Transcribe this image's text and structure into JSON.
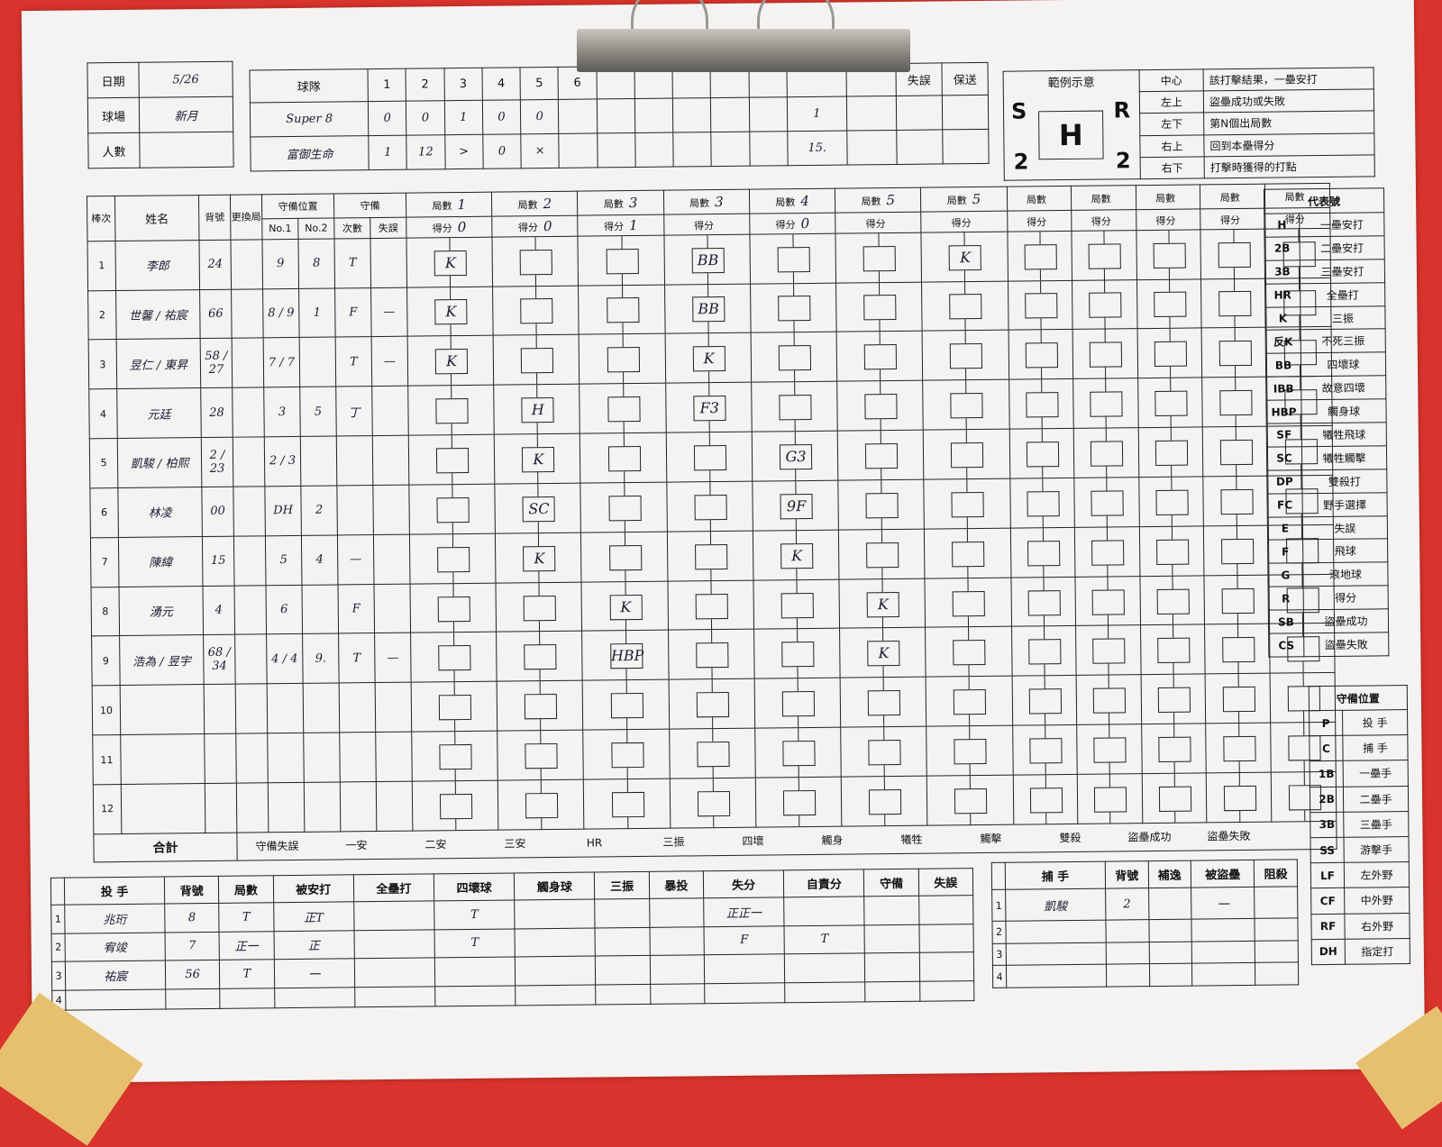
{
  "header": {
    "date_label": "日期",
    "date_value": "5/26",
    "field_label": "球場",
    "field_value": "新月",
    "attendance_label": "人數",
    "attendance_value": ""
  },
  "linescore": {
    "team_label": "球隊",
    "innings": [
      "1",
      "2",
      "3",
      "4",
      "5",
      "6"
    ],
    "extra_labels": [
      "失誤",
      "保送"
    ],
    "teams": [
      {
        "name": "Super 8",
        "scores": [
          "0",
          "0",
          "1",
          "0",
          "0",
          ""
        ],
        "total": "1"
      },
      {
        "name": "富御生命",
        "scores": [
          "1",
          "12",
          ">",
          "0",
          "×",
          ""
        ],
        "total": "15."
      }
    ]
  },
  "example": {
    "title": "範例示意",
    "corners": {
      "top_left": "S",
      "top_right": "R",
      "bottom_left": "2",
      "bottom_right": "2",
      "center": "H"
    },
    "rows": [
      {
        "pos": "中心",
        "desc": "該打擊結果，一壘安打"
      },
      {
        "pos": "左上",
        "desc": "盜壘成功或失敗"
      },
      {
        "pos": "左下",
        "desc": "第N個出局數"
      },
      {
        "pos": "右上",
        "desc": "回到本壘得分"
      },
      {
        "pos": "右下",
        "desc": "打擊時獲得的打點"
      }
    ]
  },
  "batting": {
    "headers": {
      "order": "棒次",
      "name": "姓名",
      "number": "背號",
      "sub": "更換局",
      "pos_group": "守備位置",
      "pos1": "No.1",
      "pos2": "No.2",
      "def_group": "守備",
      "def_times": "次數",
      "def_err": "失誤",
      "inning": "局數",
      "score": "得分"
    },
    "inning_marks": [
      "1",
      "2",
      "3",
      "3",
      "4",
      "5",
      "5",
      "",
      "",
      "",
      "",
      ""
    ],
    "score_marks": [
      "0",
      "0",
      "1",
      "",
      "0",
      "",
      "",
      "",
      "",
      "",
      "",
      ""
    ],
    "rows": [
      {
        "order": "1",
        "name": "李郎",
        "number": "24",
        "pos1": "9",
        "pos2": "8",
        "def": "T",
        "err": ""
      },
      {
        "order": "2",
        "name": "世馨 / 祐宸",
        "number": "66",
        "pos1": "8 / 9",
        "pos2": "1",
        "def": "F",
        "err": "—"
      },
      {
        "order": "3",
        "name": "昱仁 / 東昇",
        "number": "58 / 27",
        "pos1": "7 / 7",
        "pos2": "",
        "def": "T",
        "err": "—"
      },
      {
        "order": "4",
        "name": "元廷",
        "number": "28",
        "pos1": "3",
        "pos2": "5",
        "def": "丁",
        "err": ""
      },
      {
        "order": "5",
        "name": "凱駿 / 柏熙",
        "number": "2 / 23",
        "pos1": "2 / 3",
        "pos2": "",
        "def": "",
        "err": ""
      },
      {
        "order": "6",
        "name": "林凌",
        "number": "00",
        "pos1": "DH",
        "pos2": "2",
        "def": "",
        "err": ""
      },
      {
        "order": "7",
        "name": "陳緯",
        "number": "15",
        "pos1": "5",
        "pos2": "4",
        "def": "—",
        "err": ""
      },
      {
        "order": "8",
        "name": "湧元",
        "number": "4",
        "pos1": "6",
        "pos2": "",
        "def": "F",
        "err": ""
      },
      {
        "order": "9",
        "name": "浩為 / 昱宇",
        "number": "68 / 34",
        "pos1": "4 / 4",
        "pos2": "9.",
        "def": "T",
        "err": "—"
      },
      {
        "order": "10",
        "name": "",
        "number": "",
        "pos1": "",
        "pos2": "",
        "def": "",
        "err": ""
      },
      {
        "order": "11",
        "name": "",
        "number": "",
        "pos1": "",
        "pos2": "",
        "def": "",
        "err": ""
      },
      {
        "order": "12",
        "name": "",
        "number": "",
        "pos1": "",
        "pos2": "",
        "def": "",
        "err": ""
      }
    ],
    "marks": [
      {
        "row": 0,
        "col": 0,
        "text": "K"
      },
      {
        "row": 0,
        "col": 3,
        "text": "BB"
      },
      {
        "row": 0,
        "col": 6,
        "text": "K"
      },
      {
        "row": 1,
        "col": 0,
        "text": "K"
      },
      {
        "row": 1,
        "col": 3,
        "text": "BB"
      },
      {
        "row": 2,
        "col": 0,
        "text": "K"
      },
      {
        "row": 2,
        "col": 3,
        "text": "K"
      },
      {
        "row": 3,
        "col": 1,
        "text": "H"
      },
      {
        "row": 3,
        "col": 3,
        "text": "F3"
      },
      {
        "row": 4,
        "col": 1,
        "text": "K"
      },
      {
        "row": 4,
        "col": 4,
        "text": "G3"
      },
      {
        "row": 5,
        "col": 1,
        "text": "SC"
      },
      {
        "row": 5,
        "col": 4,
        "text": "9F"
      },
      {
        "row": 6,
        "col": 1,
        "text": "K"
      },
      {
        "row": 6,
        "col": 4,
        "text": "K"
      },
      {
        "row": 7,
        "col": 2,
        "text": "K"
      },
      {
        "row": 7,
        "col": 5,
        "text": "K"
      },
      {
        "row": 8,
        "col": 2,
        "text": "HBP"
      },
      {
        "row": 8,
        "col": 5,
        "text": "K"
      }
    ],
    "totals_label": "合計",
    "totals_items": [
      "守備失誤",
      "一安",
      "二安",
      "三安",
      "HR",
      "三振",
      "四壞",
      "觸身",
      "犧牲",
      "觸擊",
      "雙殺",
      "盜壘成功",
      "盜壘失敗"
    ]
  },
  "codes": {
    "title": "代表號",
    "rows": [
      {
        "code": "H",
        "desc": "一壘安打"
      },
      {
        "code": "2B",
        "desc": "二壘安打"
      },
      {
        "code": "3B",
        "desc": "三壘安打"
      },
      {
        "code": "HR",
        "desc": "全壘打"
      },
      {
        "code": "K",
        "desc": "三振"
      },
      {
        "code": "反K",
        "desc": "不死三振"
      },
      {
        "code": "BB",
        "desc": "四壞球"
      },
      {
        "code": "IBB",
        "desc": "故意四壞"
      },
      {
        "code": "HBP",
        "desc": "觸身球"
      },
      {
        "code": "SF",
        "desc": "犧牲飛球"
      },
      {
        "code": "SC",
        "desc": "犧牲觸擊"
      },
      {
        "code": "DP",
        "desc": "雙殺打"
      },
      {
        "code": "FC",
        "desc": "野手選擇"
      },
      {
        "code": "E",
        "desc": "失誤"
      },
      {
        "code": "F",
        "desc": "飛球"
      },
      {
        "code": "G",
        "desc": "滾地球"
      },
      {
        "code": "R",
        "desc": "得分"
      },
      {
        "code": "SB",
        "desc": "盜壘成功"
      },
      {
        "code": "CS",
        "desc": "盜壘失敗"
      }
    ]
  },
  "positions": {
    "title": "守備位置",
    "rows": [
      {
        "code": "P",
        "desc": "投 手"
      },
      {
        "code": "C",
        "desc": "捕 手"
      },
      {
        "code": "1B",
        "desc": "一壘手"
      },
      {
        "code": "2B",
        "desc": "二壘手"
      },
      {
        "code": "3B",
        "desc": "三壘手"
      },
      {
        "code": "SS",
        "desc": "游擊手"
      },
      {
        "code": "LF",
        "desc": "左外野"
      },
      {
        "code": "CF",
        "desc": "中外野"
      },
      {
        "code": "RF",
        "desc": "右外野"
      },
      {
        "code": "DH",
        "desc": "指定打"
      }
    ]
  },
  "pitching": {
    "headers": [
      "投 手",
      "背號",
      "局數",
      "被安打",
      "全壘打",
      "四壞球",
      "觸身球",
      "三振",
      "暴投",
      "失分",
      "自責分",
      "守備",
      "失誤"
    ],
    "rows": [
      {
        "n": "1",
        "name": "兆珩",
        "number": "8",
        "ip": "T",
        "hits": "正T",
        "bb": "T",
        "runs": "正正一",
        "er": ""
      },
      {
        "n": "2",
        "name": "宥竣",
        "number": "7",
        "ip": "正一",
        "hits": "正",
        "bb": "T",
        "runs": "F",
        "er": "T"
      },
      {
        "n": "3",
        "name": "祐宸",
        "number": "56",
        "ip": "T",
        "hits": "一",
        "bb": "",
        "runs": "",
        "er": ""
      },
      {
        "n": "4",
        "name": "",
        "number": "",
        "ip": "",
        "hits": "",
        "bb": "",
        "runs": "",
        "er": ""
      }
    ]
  },
  "catching": {
    "headers": [
      "捕 手",
      "背號",
      "補逸",
      "被盜壘",
      "阻殺"
    ],
    "rows": [
      {
        "n": "1",
        "name": "凱駿",
        "number": "2",
        "pb": "",
        "sb": "一",
        "cs": ""
      },
      {
        "n": "2",
        "name": "",
        "number": "",
        "pb": "",
        "sb": "",
        "cs": ""
      },
      {
        "n": "3",
        "name": "",
        "number": "",
        "pb": "",
        "sb": "",
        "cs": ""
      },
      {
        "n": "4",
        "name": "",
        "number": "",
        "pb": "",
        "sb": "",
        "cs": ""
      }
    ]
  }
}
